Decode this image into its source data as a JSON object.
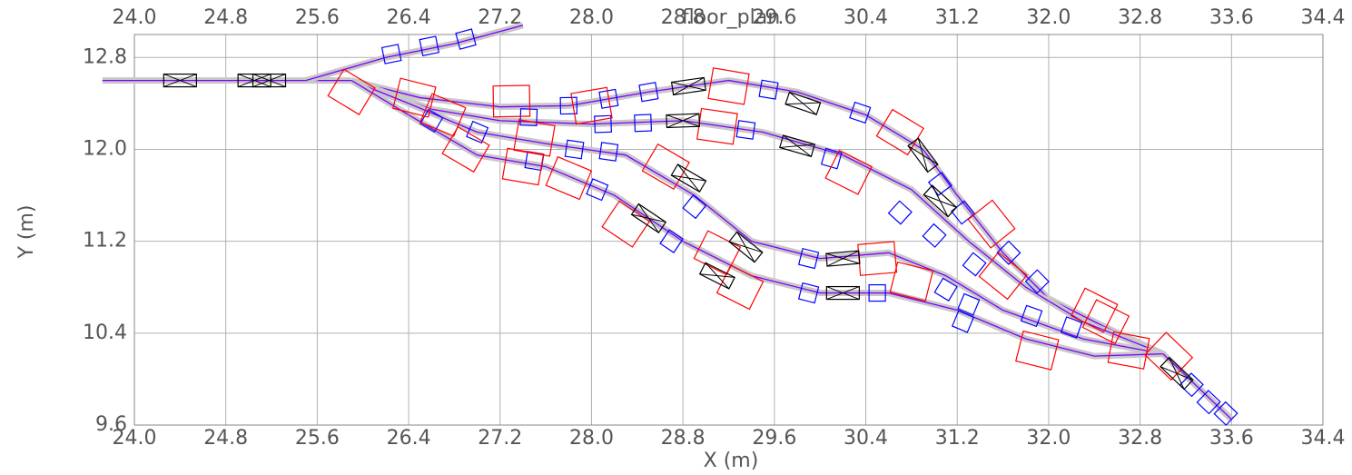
{
  "chart_data": {
    "type": "floor_plan",
    "title": "floor_plan",
    "x_label": "X (m)",
    "y_label": "Y (m)",
    "xlim": [
      24.0,
      34.4
    ],
    "ylim": [
      9.6,
      13.0
    ],
    "grid": true,
    "xticks": [
      {
        "value": 24.0,
        "label": "24.0"
      },
      {
        "value": 24.8,
        "label": "24.8"
      },
      {
        "value": 25.6,
        "label": "25.6"
      },
      {
        "value": 26.4,
        "label": "26.4"
      },
      {
        "value": 27.2,
        "label": "27.2"
      },
      {
        "value": 28.0,
        "label": "28.0"
      },
      {
        "value": 28.8,
        "label": "28.8"
      },
      {
        "value": 29.6,
        "label": "29.6"
      },
      {
        "value": 30.4,
        "label": "30.4"
      },
      {
        "value": 31.2,
        "label": "31.2"
      },
      {
        "value": 32.0,
        "label": "32.0"
      },
      {
        "value": 32.8,
        "label": "32.8"
      },
      {
        "value": 33.6,
        "label": "33.6"
      },
      {
        "value": 34.4,
        "label": "34.4"
      }
    ],
    "yticks": [
      9.6,
      10.4,
      11.2,
      {
        "value": 12.0,
        "label": "12.0"
      },
      12.8
    ],
    "series": [
      {
        "color": "#8000ff",
        "x": [
          23.72,
          25.9
        ],
        "y": [
          12.6,
          12.6
        ]
      },
      {
        "color": "#8000ff",
        "x": [
          25.5,
          26.2,
          26.8,
          27.4
        ],
        "y": [
          12.6,
          12.8,
          12.92,
          13.08
        ]
      },
      {
        "color": "#8000ff",
        "x": [
          25.9,
          26.5,
          27.2,
          27.8,
          28.5,
          29.2,
          29.8,
          30.4,
          30.9,
          31.2,
          31.6,
          32.0,
          32.5,
          33.0,
          33.6
        ],
        "y": [
          12.6,
          12.45,
          12.37,
          12.38,
          12.5,
          12.6,
          12.5,
          12.3,
          12.0,
          11.6,
          11.1,
          10.7,
          10.45,
          10.22,
          9.65
        ]
      },
      {
        "color": "#8000ff",
        "x": [
          25.9,
          26.6,
          27.2,
          28.0,
          28.8,
          29.5,
          30.2,
          30.8,
          31.3,
          31.8,
          32.3,
          33.0
        ],
        "y": [
          12.6,
          12.35,
          12.25,
          12.22,
          12.25,
          12.15,
          11.95,
          11.65,
          11.2,
          10.8,
          10.5,
          10.22
        ]
      },
      {
        "color": "#8000ff",
        "x": [
          25.9,
          26.4,
          27.0,
          27.6,
          28.3,
          28.9,
          29.4,
          30.0,
          30.6,
          31.1,
          31.6,
          32.3,
          33.0
        ],
        "y": [
          12.6,
          12.4,
          12.15,
          12.05,
          11.95,
          11.6,
          11.2,
          11.05,
          11.1,
          10.9,
          10.6,
          10.35,
          10.22
        ]
      },
      {
        "color": "#8000ff",
        "x": [
          25.9,
          26.4,
          27.0,
          27.6,
          28.2,
          28.8,
          29.4,
          30.0,
          30.6,
          31.2,
          31.8,
          32.4,
          33.0
        ],
        "y": [
          12.6,
          12.3,
          11.95,
          11.85,
          11.6,
          11.2,
          10.9,
          10.75,
          10.75,
          10.6,
          10.35,
          10.2,
          10.22
        ]
      }
    ],
    "elements": [
      {
        "color": "#0000ff",
        "marker": "square",
        "x": [
          26.25,
          26.58,
          26.9,
          27.8,
          28.15,
          28.5,
          29.55,
          30.35,
          31.05,
          31.25,
          31.65,
          27.45,
          28.1,
          28.45,
          29.35,
          30.1,
          30.7,
          31.0,
          31.35,
          31.9,
          32.2,
          26.6,
          27.0,
          27.85,
          28.15,
          28.9,
          29.9,
          31.1,
          31.3,
          31.85,
          27.5,
          28.05,
          28.7,
          29.9,
          30.5,
          31.25,
          33.25,
          33.4,
          33.55
        ],
        "y": [
          12.83,
          12.9,
          12.96,
          12.38,
          12.44,
          12.5,
          12.52,
          12.32,
          11.7,
          11.45,
          11.1,
          12.28,
          12.22,
          12.23,
          12.17,
          11.92,
          11.45,
          11.25,
          11.0,
          10.85,
          10.45,
          12.25,
          12.15,
          12.0,
          11.98,
          11.5,
          11.05,
          10.78,
          10.65,
          10.55,
          11.9,
          11.65,
          11.2,
          10.75,
          10.75,
          10.5,
          9.95,
          9.8,
          9.7
        ]
      },
      {
        "color": "#ff0000",
        "marker": "bend",
        "x": [
          25.9,
          26.45,
          27.3,
          28.0,
          29.2,
          30.7,
          26.7,
          27.5,
          29.1,
          30.25,
          31.5,
          32.5,
          26.9,
          27.8,
          28.65,
          29.1,
          30.5,
          31.6,
          32.4,
          27.4,
          28.3,
          29.3,
          30.8,
          31.9,
          32.7,
          33.05
        ],
        "y": [
          12.5,
          12.45,
          12.42,
          12.38,
          12.55,
          12.15,
          12.3,
          12.1,
          12.2,
          11.8,
          11.35,
          10.5,
          12.0,
          11.75,
          11.85,
          11.1,
          11.05,
          10.9,
          10.6,
          11.85,
          11.35,
          10.8,
          10.85,
          10.25,
          10.25,
          10.2
        ]
      },
      {
        "color": "#000000",
        "marker": "box",
        "x": [
          24.4,
          25.05,
          25.18,
          28.85,
          29.85,
          28.8,
          29.8,
          30.9,
          31.05,
          28.85,
          28.5,
          29.35,
          30.2,
          29.1,
          30.2,
          33.12
        ],
        "y": [
          12.6,
          12.6,
          12.6,
          12.55,
          12.4,
          12.25,
          12.03,
          11.95,
          11.55,
          11.75,
          11.4,
          11.15,
          11.05,
          10.9,
          10.75,
          10.05
        ]
      }
    ]
  }
}
